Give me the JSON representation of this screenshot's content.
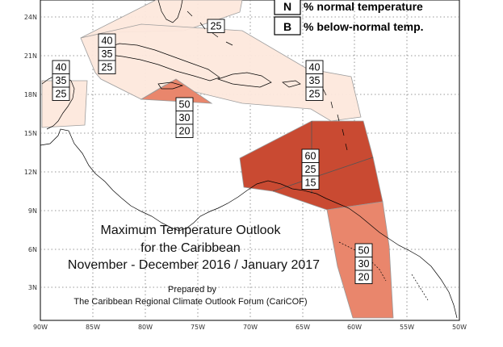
{
  "map": {
    "legend": [
      {
        "key": "N",
        "text": "% normal temperature"
      },
      {
        "key": "B",
        "text": "% below-normal temp."
      }
    ],
    "title_lines": [
      "Maximum Temperature Outlook",
      "for the Caribbean",
      "November - December 2016 / January 2017"
    ],
    "credit_lines": [
      "Prepared by",
      "The Caribbean Regional Climate Outlook Forum (CariCOF)"
    ],
    "lat_labels": [
      "3N",
      "6N",
      "9N",
      "12N",
      "15N",
      "18N",
      "21N",
      "24N"
    ],
    "lon_labels": [
      "90W",
      "85W",
      "80W",
      "75W",
      "70W",
      "65W",
      "60W",
      "55W",
      "50W"
    ],
    "colors": {
      "above_40": "#fde8dd",
      "above_50": "#e9866c",
      "above_60": "#c94a32",
      "border": "#999999",
      "coast": "#000000"
    },
    "probability_boxes": [
      {
        "values": [
          "",
          "",
          "25"
        ],
        "tier": "above_40"
      },
      {
        "values": [
          "40",
          "35",
          "25"
        ],
        "tier": "above_40"
      },
      {
        "values": [
          "40",
          "35",
          "25"
        ],
        "tier": "above_40"
      },
      {
        "values": [
          "40",
          "35",
          "25"
        ],
        "tier": "above_40"
      },
      {
        "values": [
          "50",
          "30",
          "20"
        ],
        "tier": "above_50"
      },
      {
        "values": [
          "60",
          "25",
          "15"
        ],
        "tier": "above_60"
      },
      {
        "values": [
          "50",
          "30",
          "20"
        ],
        "tier": "above_50"
      }
    ]
  }
}
